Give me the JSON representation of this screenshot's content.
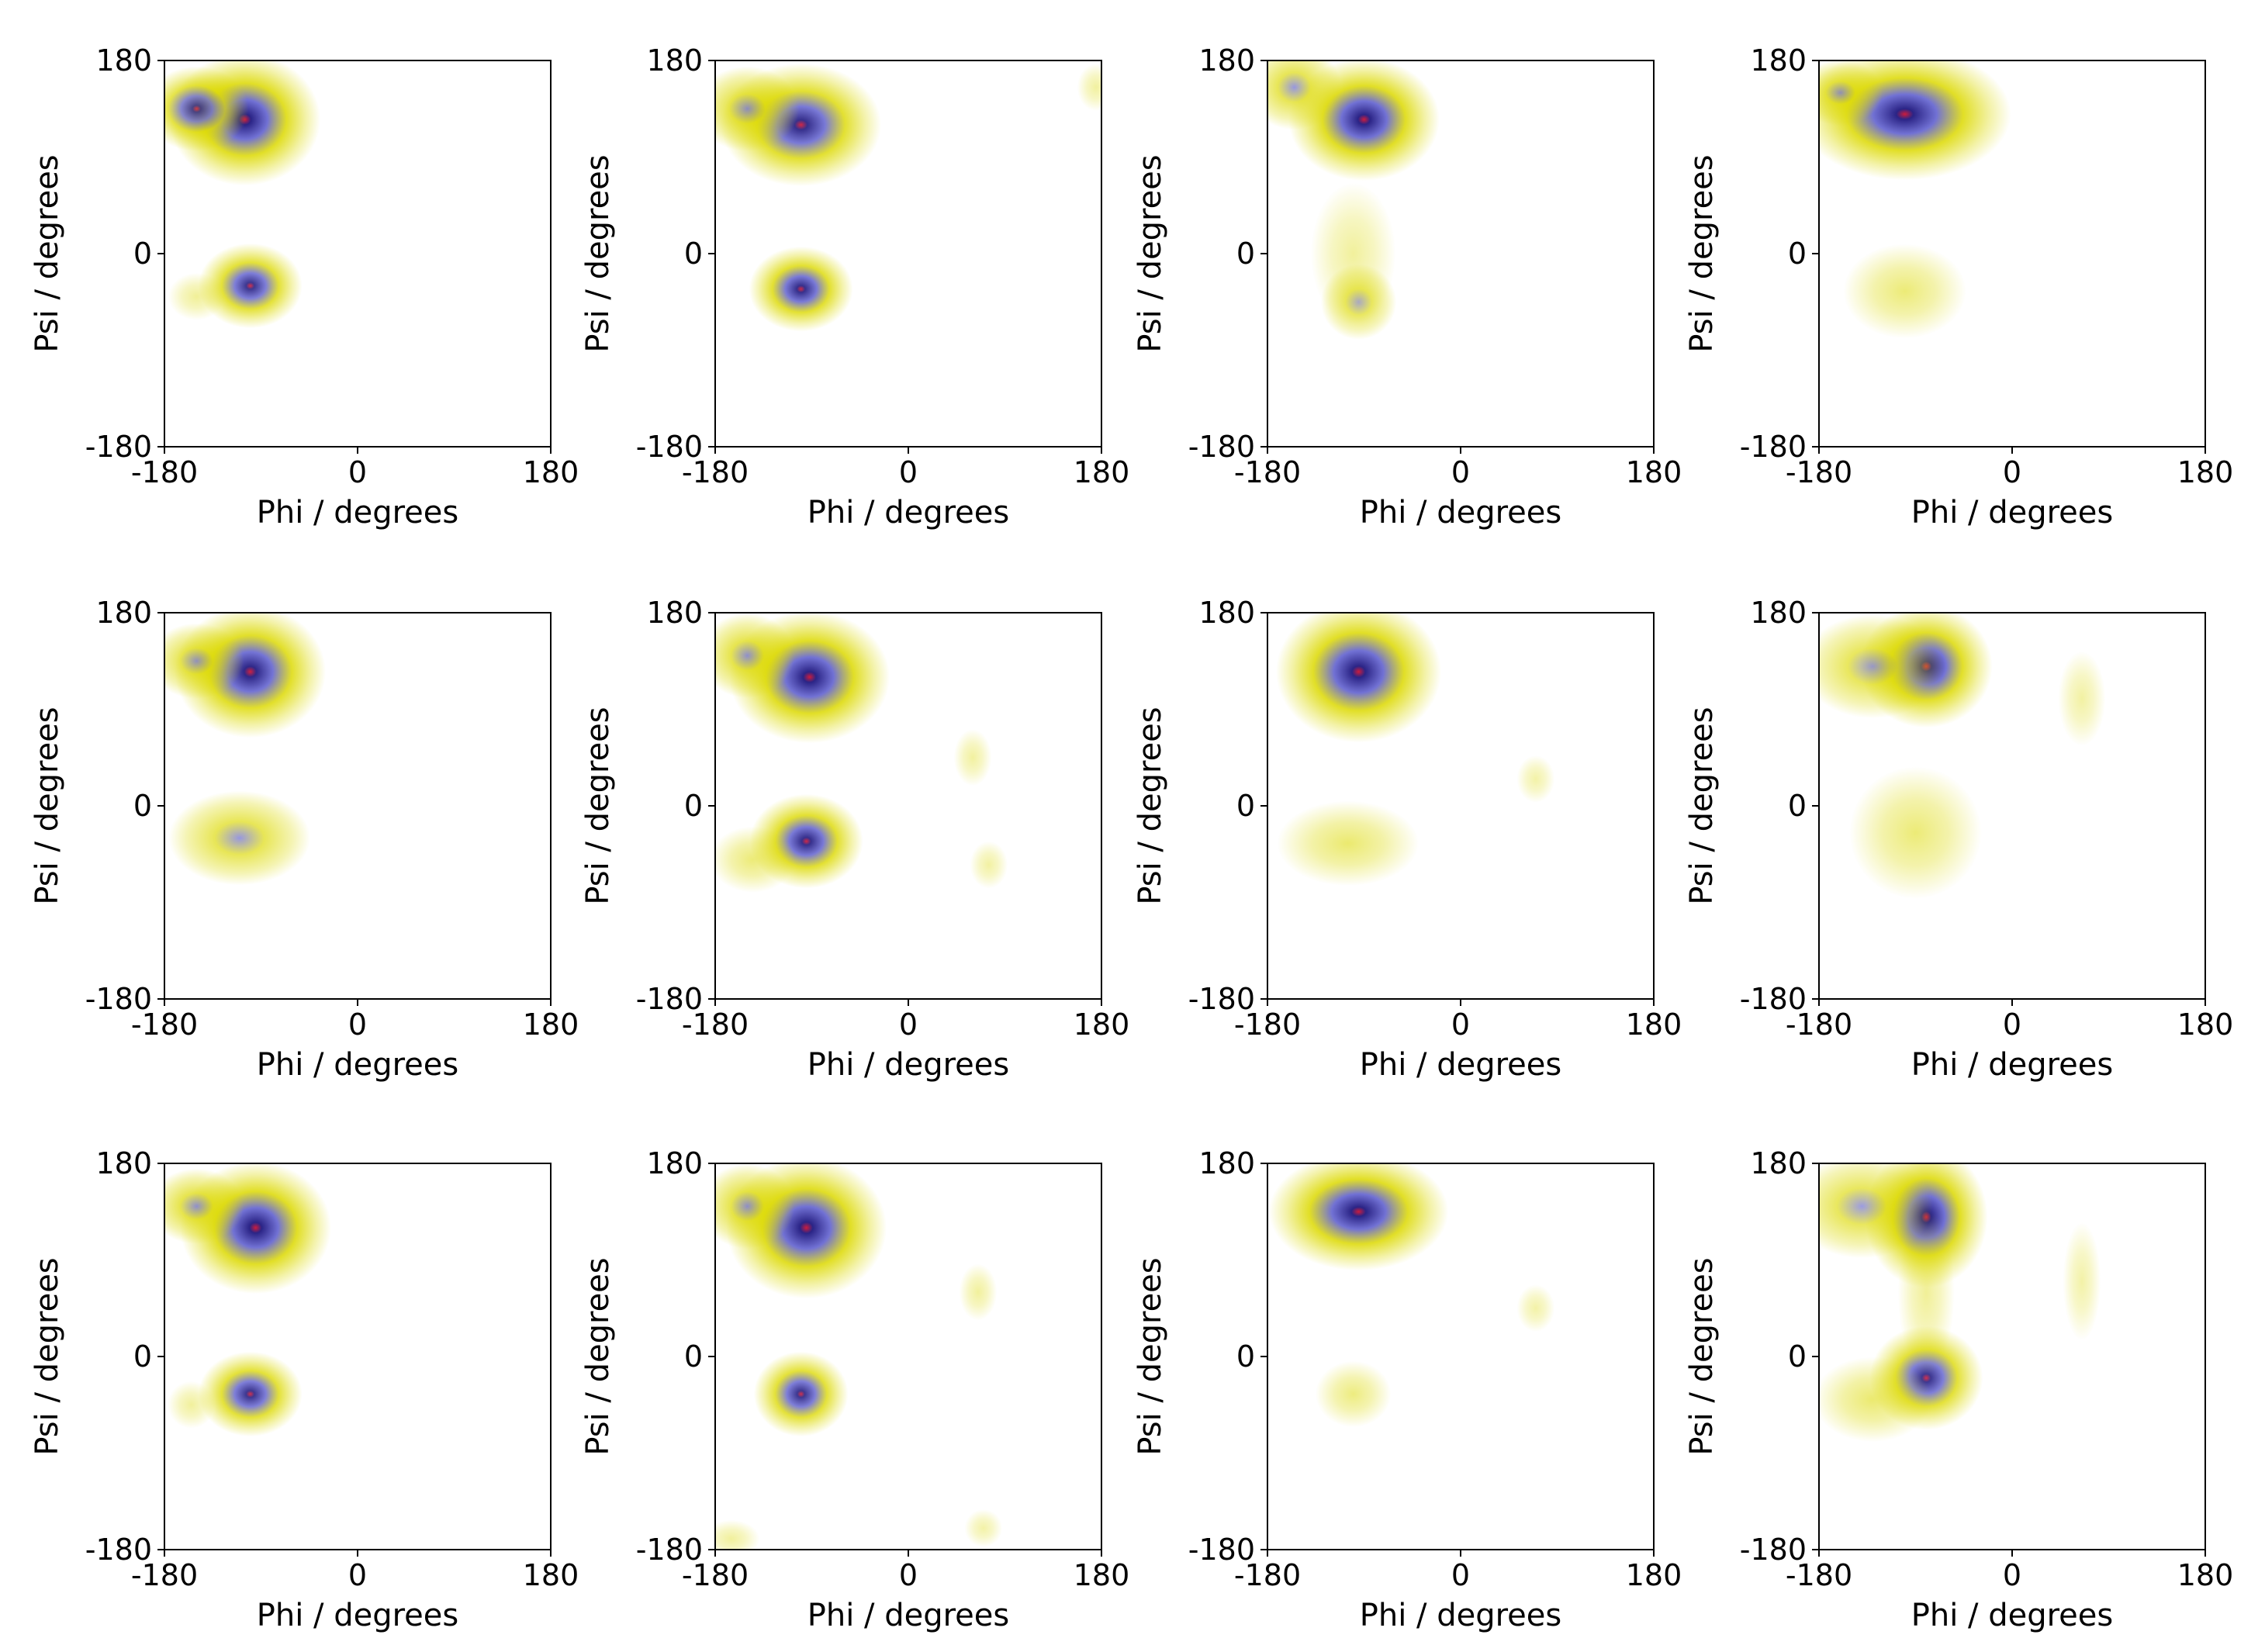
{
  "figure": {
    "rows": 3,
    "cols": 4
  },
  "colors": {
    "low": "#dcd900",
    "mid": "#6a6ad2",
    "high": "#2b2486",
    "peak": "#cc1c3c"
  },
  "chart_data": [
    {
      "type": "heatmap",
      "xlabel": "Phi / degrees",
      "ylabel": "Psi / degrees",
      "xlim": [
        -180,
        180
      ],
      "ylim": [
        -180,
        180
      ],
      "xticks": [
        "-180",
        "0",
        "180"
      ],
      "yticks": [
        "-180",
        "0",
        "180"
      ],
      "blobs": [
        {
          "phi": -105,
          "psi": 125,
          "spread_phi": 32,
          "spread_psi": 28,
          "density": 0.95
        },
        {
          "phi": -150,
          "psi": 135,
          "spread_phi": 22,
          "spread_psi": 18,
          "density": 0.7
        },
        {
          "phi": -100,
          "psi": -30,
          "spread_phi": 22,
          "spread_psi": 18,
          "density": 0.8
        },
        {
          "phi": -150,
          "psi": -40,
          "spread_phi": 12,
          "spread_psi": 10,
          "density": 0.15
        }
      ]
    },
    {
      "type": "heatmap",
      "xlabel": "Phi / degrees",
      "ylabel": "Psi / degrees",
      "xlim": [
        -180,
        180
      ],
      "ylim": [
        -180,
        180
      ],
      "xticks": [
        "-180",
        "0",
        "180"
      ],
      "yticks": [
        "-180",
        "0",
        "180"
      ],
      "blobs": [
        {
          "phi": -100,
          "psi": 120,
          "spread_phi": 34,
          "spread_psi": 26,
          "density": 0.85
        },
        {
          "phi": -150,
          "psi": 135,
          "spread_phi": 22,
          "spread_psi": 18,
          "density": 0.6
        },
        {
          "phi": -100,
          "psi": -33,
          "spread_phi": 22,
          "spread_psi": 18,
          "density": 0.85
        },
        {
          "phi": 175,
          "psi": 155,
          "spread_phi": 8,
          "spread_psi": 10,
          "density": 0.1
        }
      ]
    },
    {
      "type": "heatmap",
      "xlabel": "Phi / degrees",
      "ylabel": "Psi / degrees",
      "xlim": [
        -180,
        180
      ],
      "ylim": [
        -180,
        180
      ],
      "xticks": [
        "-180",
        "0",
        "180"
      ],
      "yticks": [
        "-180",
        "0",
        "180"
      ],
      "blobs": [
        {
          "phi": -90,
          "psi": 125,
          "spread_phi": 32,
          "spread_psi": 26,
          "density": 1.0
        },
        {
          "phi": -155,
          "psi": 155,
          "spread_phi": 20,
          "spread_psi": 18,
          "density": 0.55
        },
        {
          "phi": -95,
          "psi": -45,
          "spread_phi": 16,
          "spread_psi": 16,
          "density": 0.45
        },
        {
          "phi": -100,
          "psi": 0,
          "spread_phi": 18,
          "spread_psi": 30,
          "density": 0.12
        }
      ]
    },
    {
      "type": "heatmap",
      "xlabel": "Phi / degrees",
      "ylabel": "Psi / degrees",
      "xlim": [
        -180,
        180
      ],
      "ylim": [
        -180,
        180
      ],
      "xticks": [
        "-180",
        "0",
        "180"
      ],
      "yticks": [
        "-180",
        "0",
        "180"
      ],
      "blobs": [
        {
          "phi": -100,
          "psi": 130,
          "spread_phi": 45,
          "spread_psi": 28,
          "density": 0.95
        },
        {
          "phi": -160,
          "psi": 150,
          "spread_phi": 18,
          "spread_psi": 14,
          "density": 0.55
        },
        {
          "phi": -100,
          "psi": -35,
          "spread_phi": 26,
          "spread_psi": 20,
          "density": 0.35
        }
      ]
    },
    {
      "type": "heatmap",
      "xlabel": "Phi / degrees",
      "ylabel": "Psi / degrees",
      "xlim": [
        -180,
        180
      ],
      "ylim": [
        -180,
        180
      ],
      "xticks": [
        "-180",
        "0",
        "180"
      ],
      "yticks": [
        "-180",
        "0",
        "180"
      ],
      "blobs": [
        {
          "phi": -100,
          "psi": 125,
          "spread_phi": 32,
          "spread_psi": 28,
          "density": 0.9
        },
        {
          "phi": -150,
          "psi": 135,
          "spread_phi": 20,
          "spread_psi": 16,
          "density": 0.55
        },
        {
          "phi": -110,
          "psi": -30,
          "spread_phi": 30,
          "spread_psi": 20,
          "density": 0.55
        }
      ]
    },
    {
      "type": "heatmap",
      "xlabel": "Phi / degrees",
      "ylabel": "Psi / degrees",
      "xlim": [
        -180,
        180
      ],
      "ylim": [
        -180,
        180
      ],
      "xticks": [
        "-180",
        "0",
        "180"
      ],
      "yticks": [
        "-180",
        "0",
        "180"
      ],
      "blobs": [
        {
          "phi": -92,
          "psi": 120,
          "spread_phi": 34,
          "spread_psi": 28,
          "density": 1.0
        },
        {
          "phi": -150,
          "psi": 140,
          "spread_phi": 20,
          "spread_psi": 18,
          "density": 0.6
        },
        {
          "phi": -95,
          "psi": -33,
          "spread_phi": 24,
          "spread_psi": 20,
          "density": 0.85
        },
        {
          "phi": -145,
          "psi": -50,
          "spread_phi": 18,
          "spread_psi": 14,
          "density": 0.35
        },
        {
          "phi": 60,
          "psi": 45,
          "spread_phi": 8,
          "spread_psi": 12,
          "density": 0.1
        },
        {
          "phi": 75,
          "psi": -55,
          "spread_phi": 8,
          "spread_psi": 10,
          "density": 0.08
        }
      ]
    },
    {
      "type": "heatmap",
      "xlabel": "Phi / degrees",
      "ylabel": "Psi / degrees",
      "xlim": [
        -180,
        180
      ],
      "ylim": [
        -180,
        180
      ],
      "xticks": [
        "-180",
        "0",
        "180"
      ],
      "yticks": [
        "-180",
        "0",
        "180"
      ],
      "blobs": [
        {
          "phi": -95,
          "psi": 125,
          "spread_phi": 35,
          "spread_psi": 30,
          "density": 0.95
        },
        {
          "phi": -105,
          "psi": -35,
          "spread_phi": 30,
          "spread_psi": 18,
          "density": 0.4
        },
        {
          "phi": 70,
          "psi": 25,
          "spread_phi": 8,
          "spread_psi": 10,
          "density": 0.05
        }
      ]
    },
    {
      "type": "heatmap",
      "xlabel": "Phi / degrees",
      "ylabel": "Psi / degrees",
      "xlim": [
        -180,
        180
      ],
      "ylim": [
        -180,
        180
      ],
      "xticks": [
        "-180",
        "0",
        "180"
      ],
      "yticks": [
        "-180",
        "0",
        "180"
      ],
      "blobs": [
        {
          "phi": -80,
          "psi": 130,
          "spread_phi": 28,
          "spread_psi": 26,
          "density": 0.9
        },
        {
          "phi": -130,
          "psi": 130,
          "spread_phi": 30,
          "spread_psi": 22,
          "density": 0.5
        },
        {
          "phi": -90,
          "psi": -25,
          "spread_phi": 28,
          "spread_psi": 28,
          "density": 0.35
        },
        {
          "phi": 65,
          "psi": 100,
          "spread_phi": 10,
          "spread_psi": 20,
          "density": 0.08
        }
      ]
    },
    {
      "type": "heatmap",
      "xlabel": "Phi / degrees",
      "ylabel": "Psi / degrees",
      "xlim": [
        -180,
        180
      ],
      "ylim": [
        -180,
        180
      ],
      "xticks": [
        "-180",
        "0",
        "180"
      ],
      "yticks": [
        "-180",
        "0",
        "180"
      ],
      "blobs": [
        {
          "phi": -95,
          "psi": 120,
          "spread_phi": 32,
          "spread_psi": 28,
          "density": 0.95
        },
        {
          "phi": -150,
          "psi": 140,
          "spread_phi": 20,
          "spread_psi": 16,
          "density": 0.6
        },
        {
          "phi": -100,
          "psi": -35,
          "spread_phi": 22,
          "spread_psi": 18,
          "density": 0.8
        },
        {
          "phi": -155,
          "psi": -45,
          "spread_phi": 10,
          "spread_psi": 10,
          "density": 0.12
        }
      ]
    },
    {
      "type": "heatmap",
      "xlabel": "Phi / degrees",
      "ylabel": "Psi / degrees",
      "xlim": [
        -180,
        180
      ],
      "ylim": [
        -180,
        180
      ],
      "xticks": [
        "-180",
        "0",
        "180"
      ],
      "yticks": [
        "-180",
        "0",
        "180"
      ],
      "blobs": [
        {
          "phi": -95,
          "psi": 120,
          "spread_phi": 34,
          "spread_psi": 30,
          "density": 0.95
        },
        {
          "phi": -150,
          "psi": 140,
          "spread_phi": 20,
          "spread_psi": 18,
          "density": 0.6
        },
        {
          "phi": -100,
          "psi": -35,
          "spread_phi": 20,
          "spread_psi": 18,
          "density": 0.8
        },
        {
          "phi": 65,
          "psi": 60,
          "spread_phi": 8,
          "spread_psi": 12,
          "density": 0.12
        },
        {
          "phi": -165,
          "psi": -170,
          "spread_phi": 12,
          "spread_psi": 8,
          "density": 0.12
        },
        {
          "phi": 70,
          "psi": -160,
          "spread_phi": 8,
          "spread_psi": 8,
          "density": 0.05
        }
      ]
    },
    {
      "type": "heatmap",
      "xlabel": "Phi / degrees",
      "ylabel": "Psi / degrees",
      "xlim": [
        -180,
        180
      ],
      "ylim": [
        -180,
        180
      ],
      "xticks": [
        "-180",
        "0",
        "180"
      ],
      "yticks": [
        "-180",
        "0",
        "180"
      ],
      "blobs": [
        {
          "phi": -95,
          "psi": 135,
          "spread_phi": 38,
          "spread_psi": 25,
          "density": 1.0
        },
        {
          "phi": -100,
          "psi": -35,
          "spread_phi": 16,
          "spread_psi": 14,
          "density": 0.3
        },
        {
          "phi": 70,
          "psi": 45,
          "spread_phi": 8,
          "spread_psi": 10,
          "density": 0.05
        }
      ]
    },
    {
      "type": "heatmap",
      "xlabel": "Phi / degrees",
      "ylabel": "Psi / degrees",
      "xlim": [
        -180,
        180
      ],
      "ylim": [
        -180,
        180
      ],
      "xticks": [
        "-180",
        "0",
        "180"
      ],
      "yticks": [
        "-180",
        "0",
        "180"
      ],
      "blobs": [
        {
          "phi": -80,
          "psi": 130,
          "spread_phi": 26,
          "spread_psi": 30,
          "density": 1.0
        },
        {
          "phi": -140,
          "psi": 140,
          "spread_phi": 30,
          "spread_psi": 22,
          "density": 0.5
        },
        {
          "phi": -80,
          "psi": -20,
          "spread_phi": 24,
          "spread_psi": 22,
          "density": 0.8
        },
        {
          "phi": -130,
          "psi": -40,
          "spread_phi": 25,
          "spread_psi": 18,
          "density": 0.4
        },
        {
          "phi": -80,
          "psi": 60,
          "spread_phi": 12,
          "spread_psi": 35,
          "density": 0.15
        },
        {
          "phi": 65,
          "psi": 70,
          "spread_phi": 8,
          "spread_psi": 25,
          "density": 0.05
        }
      ]
    }
  ]
}
